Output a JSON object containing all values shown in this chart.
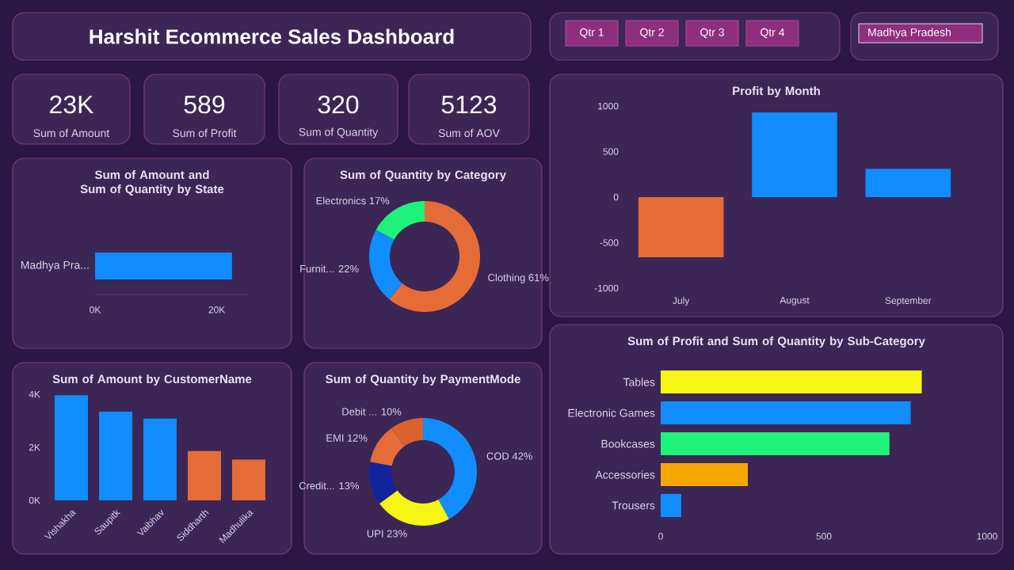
{
  "chart_data": [
    {
      "type": "other",
      "title": "Harshit Ecommerce Sales Dashboard",
      "annotations": [
        "Qtr 1",
        "Qtr 2",
        "Qtr 3",
        "Qtr 4",
        "Madhya Pradesh"
      ]
    },
    {
      "type": "other",
      "annotations": [
        "23K",
        "Sum of Amount",
        "589",
        "Sum of Profit",
        "320",
        "Sum of Quantity",
        "5123",
        "Sum of AOV"
      ]
    },
    {
      "type": "bar",
      "title": "Profit by Month",
      "categories": [
        "July",
        "August",
        "September"
      ],
      "values": [
        -660,
        930,
        310
      ],
      "colors": [
        "#e66c37",
        "#118dff",
        "#118dff"
      ],
      "ylim": [
        -1000,
        1000
      ],
      "yticks": [
        -1000,
        -500,
        0,
        500,
        1000
      ]
    },
    {
      "type": "bar",
      "orientation": "horizontal",
      "title": "Sum of Amount and Sum of Quantity by State",
      "categories": [
        "Madhya Pra..."
      ],
      "values": [
        22500
      ],
      "colors": [
        "#118dff"
      ],
      "xlim": [
        0,
        25000
      ],
      "xticks": [
        {
          "value": 0,
          "label": "0K"
        },
        {
          "value": 20000,
          "label": "20K"
        }
      ]
    },
    {
      "type": "donut",
      "title": "Sum of Quantity by Category",
      "categories": [
        "Clothing",
        "Furnit...",
        "Electronics"
      ],
      "values": [
        61,
        22,
        17
      ],
      "value_labels": [
        "61%",
        "22%",
        "17%"
      ],
      "colors": [
        "#e66c37",
        "#118dff",
        "#1ff27a"
      ]
    },
    {
      "type": "bar",
      "title": "Sum of Amount by CustomerName",
      "categories": [
        "Vishakha",
        "Saupitk",
        "Vaibhav",
        "Siddharth",
        "Madhulika"
      ],
      "values": [
        3960,
        3340,
        3080,
        1860,
        1540
      ],
      "colors": [
        "#118dff",
        "#118dff",
        "#118dff",
        "#e66c37",
        "#e66c37"
      ],
      "ylim": [
        0,
        4000
      ],
      "yticks": [
        {
          "value": 0,
          "label": "0K"
        },
        {
          "value": 2000,
          "label": "2K"
        },
        {
          "value": 4000,
          "label": "4K"
        }
      ]
    },
    {
      "type": "donut",
      "title": "Sum of Quantity by PaymentMode",
      "categories": [
        "COD",
        "UPI",
        "Credit...",
        "EMI",
        "Debit ..."
      ],
      "values": [
        42,
        23,
        13,
        12,
        10
      ],
      "value_labels": [
        "42%",
        "23%",
        "13%",
        "12%",
        "10%"
      ],
      "colors": [
        "#118dff",
        "#f5f516",
        "#12239e",
        "#e66c37",
        "#d9622f"
      ]
    },
    {
      "type": "bar",
      "orientation": "horizontal",
      "title": "Sum of Profit and Sum of Quantity by Sub-Category",
      "categories": [
        "Tables",
        "Electronic Games",
        "Bookcases",
        "Accessories",
        "Trousers"
      ],
      "values": [
        800,
        766,
        701,
        267,
        63
      ],
      "colors": [
        "#f5f516",
        "#118dff",
        "#1ff27a",
        "#f7a800",
        "#118dff"
      ],
      "xlim": [
        0,
        1000
      ],
      "xticks": [
        0,
        500,
        1000
      ]
    }
  ]
}
